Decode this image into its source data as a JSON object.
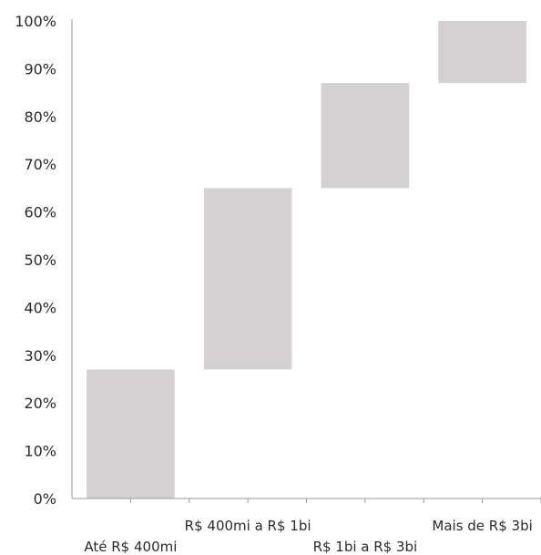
{
  "chart_data": {
    "type": "bar",
    "subtype": "floating-waterfall",
    "title": "",
    "xlabel": "",
    "ylabel": "",
    "ylim": [
      0,
      100
    ],
    "yticks": [
      "0%",
      "10%",
      "20%",
      "30%",
      "40%",
      "50%",
      "60%",
      "70%",
      "80%",
      "90%",
      "100%"
    ],
    "categories": [
      "Até R$ 400mi",
      "R$ 400mi a R$ 1bi",
      "R$ 1bi a R$ 3bi",
      "Mais de R$ 3bi"
    ],
    "ranges": [
      [
        0,
        27
      ],
      [
        27,
        65
      ],
      [
        65,
        87
      ],
      [
        87,
        100
      ]
    ],
    "values": [
      27,
      38,
      22,
      13
    ],
    "label_rows": [
      1,
      0,
      1,
      0
    ],
    "bar_color": "#d3d1d1",
    "axis_color": "#9a9a9a",
    "grid": false,
    "legend": "none"
  }
}
